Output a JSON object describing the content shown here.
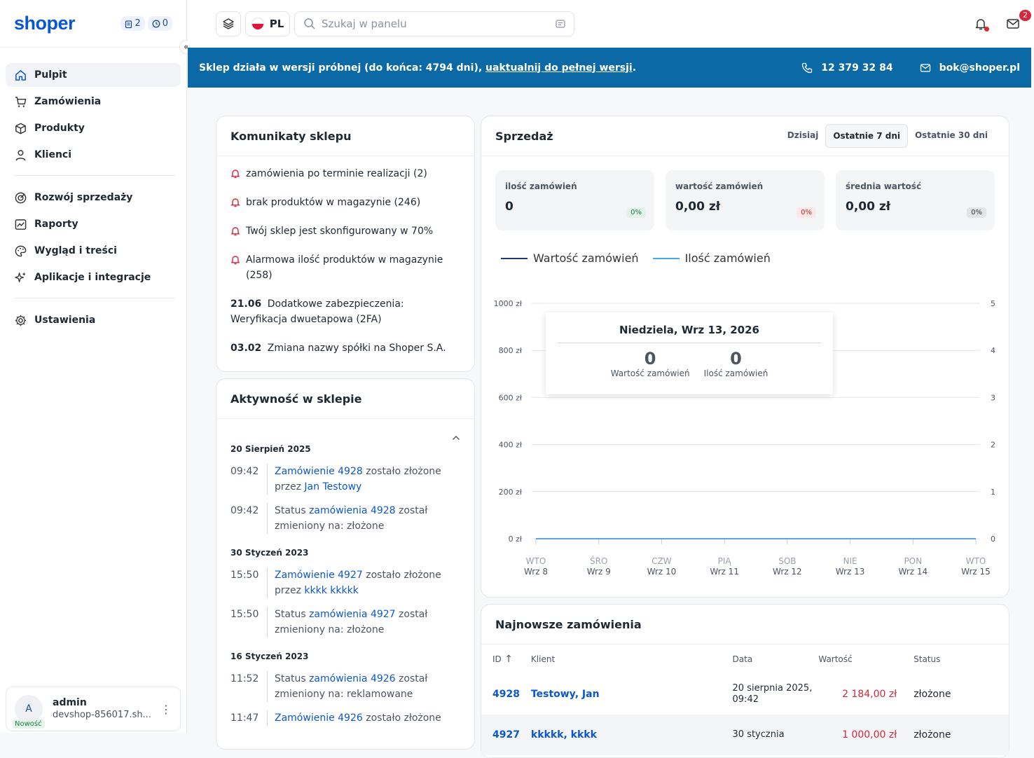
{
  "sidebar": {
    "logo": "shoper",
    "counter1": "2",
    "counter2": "0",
    "collapse_icon": "«",
    "items": [
      {
        "label": "Pulpit"
      },
      {
        "label": "Zamówienia"
      },
      {
        "label": "Produkty"
      },
      {
        "label": "Klienci"
      },
      {
        "label": "Rozwój sprzedaży"
      },
      {
        "label": "Raporty"
      },
      {
        "label": "Wygląd i treści"
      },
      {
        "label": "Aplikacje i integracje"
      },
      {
        "label": "Ustawienia"
      }
    ],
    "user": {
      "initial": "A",
      "badge": "Nowość",
      "name": "admin",
      "shop": "devshop-856017.sh..."
    }
  },
  "topbar": {
    "lang": "PL",
    "search_placeholder": "Szukaj w panelu",
    "messages_count": "2"
  },
  "banner": {
    "text": "Sklep działa w wersji próbnej (do końca: 4794 dni), ",
    "link": "uaktualnij do pełnej wersji",
    "end": ".",
    "phone": "12 379 32 84",
    "email": "bok@shoper.pl"
  },
  "messages": {
    "title": "Komunikaty sklepu",
    "items": [
      {
        "type": "alert",
        "text": "zamówienia po terminie realizacji (2)"
      },
      {
        "type": "alert",
        "text": "brak produktów w magazynie (246)"
      },
      {
        "type": "alert",
        "text": "Twój sklep jest skonfigurowany w 70%"
      },
      {
        "type": "alert",
        "text": "Alarmowa ilość produktów w magazynie (258)"
      },
      {
        "type": "news",
        "date": "21.06",
        "text": "Dodatkowe zabezpieczenia: Weryfikacja dwuetapowa (2FA)"
      },
      {
        "type": "news",
        "date": "03.02",
        "text": "Zmiana nazwy spółki na Shoper S.A."
      }
    ]
  },
  "activity": {
    "title": "Aktywność w sklepie",
    "groups": [
      {
        "date": "20 Sierpień 2025",
        "items": [
          {
            "time": "09:42",
            "a": "",
            "l1": "Zamówienie 4928",
            "b": " zostało złożone przez ",
            "l2": "Jan Testowy",
            "c": ""
          },
          {
            "time": "09:42",
            "a": "Status ",
            "l1": "zamówienia 4928",
            "b": " został zmieniony na: złożone",
            "l2": "",
            "c": ""
          }
        ]
      },
      {
        "date": "30 Styczeń 2023",
        "items": [
          {
            "time": "15:50",
            "a": "",
            "l1": "Zamówienie 4927",
            "b": " zostało złożone przez ",
            "l2": "kkkk kkkkk",
            "c": ""
          },
          {
            "time": "15:50",
            "a": "Status ",
            "l1": "zamówienia 4927",
            "b": " został zmieniony na: złożone",
            "l2": "",
            "c": ""
          }
        ]
      },
      {
        "date": "16 Styczeń 2023",
        "items": [
          {
            "time": "11:52",
            "a": "Status ",
            "l1": "zamówienia 4926",
            "b": " został zmieniony na: reklamowane",
            "l2": "",
            "c": ""
          },
          {
            "time": "11:47",
            "a": "",
            "l1": "Zamówienie 4926",
            "b": " zostało złożone",
            "l2": "",
            "c": ""
          }
        ]
      }
    ]
  },
  "sales": {
    "title": "Sprzedaż",
    "tabs": [
      "Dzisiaj",
      "Ostatnie 7 dni",
      "Ostatnie 30 dni"
    ],
    "active_tab": 1,
    "stats": [
      {
        "label": "ilość zamówień",
        "value": "0",
        "pct": "0%",
        "pct_color": "#1a7f43",
        "pct_bg": "#e3f4ea"
      },
      {
        "label": "wartość zamówień",
        "value": "0,00 zł",
        "pct": "0%",
        "pct_color": "#c62828",
        "pct_bg": "#fde8e8"
      },
      {
        "label": "średnia wartość",
        "value": "0,00 zł",
        "pct": "0%",
        "pct_color": "#333333",
        "pct_bg": "#e2e4e7"
      }
    ]
  },
  "chart_data": {
    "type": "line",
    "categories": [
      "WTO Wrz 8",
      "ŚRO Wrz 9",
      "CZW Wrz 10",
      "PIĄ Wrz 11",
      "SOB Wrz 12",
      "NIE Wrz 13",
      "PON Wrz 14",
      "WTO Wrz 15"
    ],
    "x_days": [
      "WTO",
      "ŚRO",
      "CZW",
      "PIĄ",
      "SOB",
      "NIE",
      "PON",
      "WTO"
    ],
    "x_dates": [
      "Wrz 8",
      "Wrz 9",
      "Wrz 10",
      "Wrz 11",
      "Wrz 12",
      "Wrz 13",
      "Wrz 14",
      "Wrz 15"
    ],
    "series": [
      {
        "name": "Wartość zamówień",
        "color": "#1f3a7a",
        "values": [
          0,
          0,
          0,
          0,
          0,
          0,
          0,
          0
        ]
      },
      {
        "name": "Ilość zamówień",
        "color": "#4aa8f0",
        "values": [
          0,
          0,
          0,
          0,
          0,
          0,
          0,
          0
        ]
      }
    ],
    "y_left_ticks": [
      "1000 zł",
      "800 zł",
      "600 zł",
      "400 zł",
      "200 zł",
      "0 zł"
    ],
    "y_right_ticks": [
      "5",
      "4",
      "3",
      "2",
      "1",
      "0"
    ],
    "ylim_left": [
      0,
      1000
    ],
    "ylim_right": [
      0,
      5
    ],
    "tooltip": {
      "title": "Niedziela, Wrz 13, 2026",
      "v1": "0",
      "l1": "Wartość zamówień",
      "v2": "0",
      "l2": "Ilość zamówień"
    }
  },
  "orders": {
    "title": "Najnowsze zamówienia",
    "columns": [
      "ID",
      "Klient",
      "Data",
      "Wartość",
      "Status"
    ],
    "rows": [
      {
        "id": "4928",
        "client": "Testowy, Jan",
        "date": "20 sierpnia 2025, 09:42",
        "value": "2 184,00 zł",
        "status": "złożone"
      },
      {
        "id": "4927",
        "client": "kkkkk, kkkk",
        "date": "30 stycznia",
        "value": "1 000,00 zł",
        "status": "złożone"
      }
    ]
  }
}
